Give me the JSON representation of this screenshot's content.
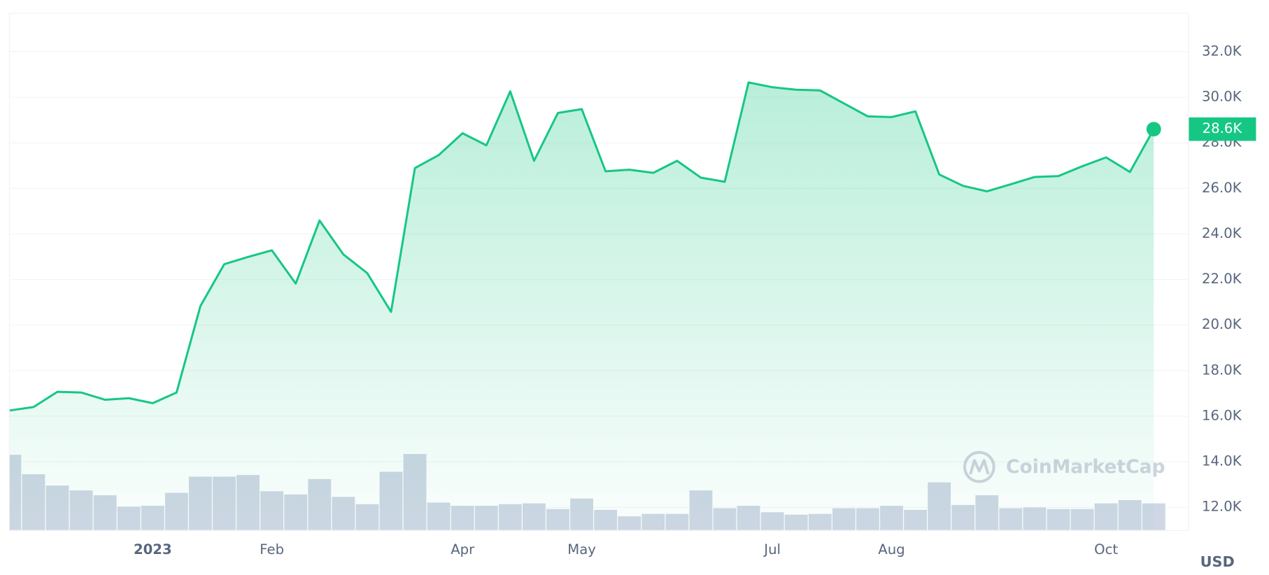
{
  "chart_data": {
    "type": "line",
    "categories": [
      null,
      null,
      null,
      null,
      null,
      null,
      "2023",
      null,
      null,
      null,
      null,
      "Feb",
      null,
      null,
      null,
      null,
      null,
      null,
      null,
      "Apr",
      null,
      null,
      null,
      null,
      "May",
      null,
      null,
      null,
      null,
      null,
      null,
      null,
      "Jul",
      null,
      null,
      null,
      null,
      "Aug",
      null,
      null,
      null,
      null,
      null,
      null,
      null,
      null,
      "Oct",
      null,
      null
    ],
    "series": [
      {
        "color": "#16c784",
        "values": [
          16250,
          16400,
          17070,
          17040,
          16720,
          16790,
          16570,
          17040,
          20830,
          22670,
          22990,
          23280,
          21820,
          24590,
          23100,
          22280,
          20580,
          26890,
          27460,
          28420,
          27890,
          30260,
          27210,
          29310,
          29480,
          26750,
          26820,
          26680,
          27210,
          26470,
          26290,
          30650,
          30440,
          30330,
          30300,
          29730,
          29160,
          29130,
          29380,
          26610,
          26110,
          25870,
          26180,
          26500,
          26540,
          26970,
          27360,
          26720,
          28600
        ],
        "value_labels": [
          null,
          null,
          null,
          null,
          null,
          null,
          null,
          null,
          null,
          null,
          null,
          null,
          null,
          null,
          null,
          null,
          null,
          null,
          null,
          null,
          null,
          null,
          null,
          null,
          null,
          null,
          null,
          null,
          null,
          null,
          null,
          null,
          null,
          null,
          null,
          null,
          null,
          null,
          null,
          null,
          null,
          null,
          null,
          null,
          null,
          null,
          null,
          null,
          "28.6K"
        ]
      }
    ],
    "volume": {
      "color": "#cfd6e4",
      "values": [
        93,
        69,
        55,
        49,
        43,
        29,
        30,
        46,
        66,
        66,
        68,
        48,
        44,
        63,
        41,
        32,
        72,
        94,
        34,
        30,
        30,
        32,
        33,
        26,
        39,
        25,
        17,
        20,
        20,
        49,
        27,
        30,
        22,
        19,
        20,
        27,
        27,
        30,
        25,
        59,
        31,
        43,
        27,
        28,
        26,
        26,
        33,
        37,
        33
      ],
      "lim": [
        0,
        100
      ]
    },
    "ylim": [
      11000,
      33700
    ],
    "yticks": [
      {
        "value": 12000,
        "label": "12.0K"
      },
      {
        "value": 14000,
        "label": "14.0K"
      },
      {
        "value": 16000,
        "label": "16.0K"
      },
      {
        "value": 18000,
        "label": "18.0K"
      },
      {
        "value": 20000,
        "label": "20.0K"
      },
      {
        "value": 22000,
        "label": "22.0K"
      },
      {
        "value": 24000,
        "label": "24.0K"
      },
      {
        "value": 26000,
        "label": "26.0K"
      },
      {
        "value": 28000,
        "label": "28.0K"
      },
      {
        "value": 30000,
        "label": "30.0K"
      },
      {
        "value": 32000,
        "label": "32.0K"
      }
    ],
    "grid": true,
    "currency": "USD",
    "watermark": "CoinMarketCap"
  }
}
